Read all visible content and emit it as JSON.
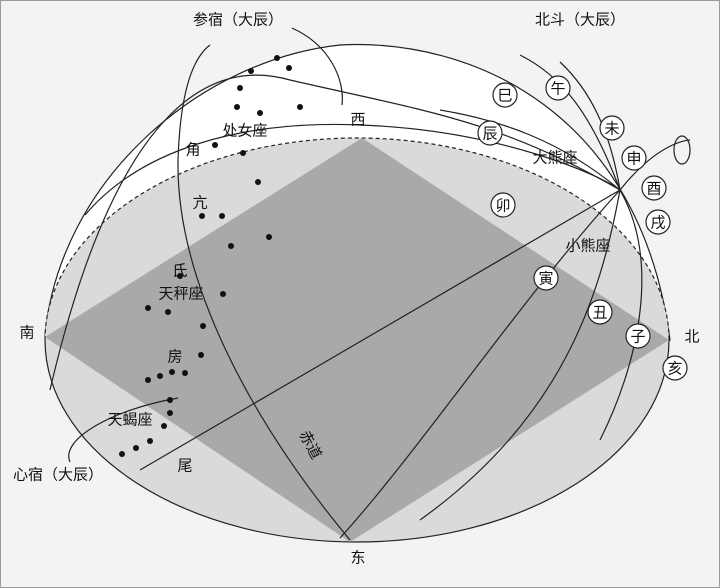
{
  "labels": {
    "shen_su": "参宿（大辰）",
    "bei_dou": "北斗（大辰）",
    "xi": "西",
    "chu_nv": "处女座",
    "jiao": "角",
    "kang": "亢",
    "di": "氐",
    "tian_cheng": "天秤座",
    "nan": "南",
    "fang": "房",
    "tian_xie": "天蝎座",
    "xin_su": "心宿（大辰）",
    "wei": "尾",
    "dong": "东",
    "chi_dao": "赤道",
    "da_xiong": "大熊座",
    "xiao_xiong": "小熊座",
    "bei": "北"
  },
  "branches": [
    "巳",
    "午",
    "未",
    "申",
    "酉",
    "戌",
    "辰",
    "卯",
    "寅",
    "丑",
    "子",
    "亥"
  ]
}
